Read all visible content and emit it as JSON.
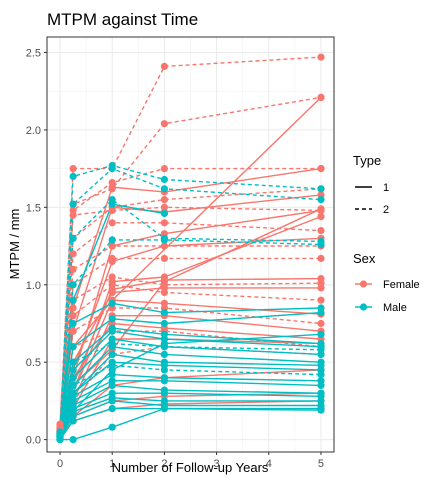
{
  "chart_data": {
    "type": "line",
    "title": "MTPM against Time",
    "xlabel": "Number of Follow-up Years",
    "ylabel": "MTPM / mm",
    "x_ticks": [
      0,
      1,
      2,
      3,
      4,
      5
    ],
    "y_ticks": [
      "0.0",
      "0.5",
      "1.0",
      "1.5",
      "2.0",
      "2.5"
    ],
    "xlim": [
      -0.25,
      5.25
    ],
    "ylim": [
      -0.08,
      2.6
    ],
    "grid": true,
    "legend": {
      "position": "right",
      "type_title": "Type",
      "type_entries": [
        {
          "label": "1",
          "linetype": "solid"
        },
        {
          "label": "2",
          "linetype": "dashed"
        }
      ],
      "sex_title": "Sex",
      "sex_entries": [
        {
          "label": "Female",
          "color": "#F8766D"
        },
        {
          "label": "Male",
          "color": "#00BFC4"
        }
      ]
    },
    "colors": {
      "Female": "#F8766D",
      "Male": "#00BFC4"
    },
    "series": [
      {
        "sex": "Female",
        "type": "2",
        "x": [
          0,
          0.25,
          1,
          2,
          5
        ],
        "y": [
          0.08,
          1.75,
          1.75,
          2.41,
          2.47
        ]
      },
      {
        "sex": "Female",
        "type": "2",
        "x": [
          0,
          0.25,
          1,
          2,
          5
        ],
        "y": [
          0.05,
          1.52,
          1.62,
          2.04,
          2.21
        ]
      },
      {
        "sex": "Female",
        "type": "1",
        "x": [
          0,
          0.25,
          1,
          5
        ],
        "y": [
          0.05,
          0.6,
          0.9,
          2.21
        ]
      },
      {
        "sex": "Female",
        "type": "2",
        "x": [
          0,
          0.25,
          1,
          2,
          5
        ],
        "y": [
          0.1,
          1.48,
          1.66,
          1.75,
          1.75
        ]
      },
      {
        "sex": "Female",
        "type": "1",
        "x": [
          0,
          0.25,
          1,
          2,
          5
        ],
        "y": [
          0.06,
          0.85,
          1.63,
          1.6,
          1.75
        ]
      },
      {
        "sex": "Female",
        "type": "2",
        "x": [
          0,
          0.25,
          1,
          2,
          5
        ],
        "y": [
          0.07,
          1.3,
          1.5,
          1.55,
          1.62
        ]
      },
      {
        "sex": "Female",
        "type": "1",
        "x": [
          0,
          0.25,
          1,
          2,
          5
        ],
        "y": [
          0.05,
          0.7,
          1.5,
          1.47,
          1.58
        ]
      },
      {
        "sex": "Female",
        "type": "2",
        "x": [
          0,
          0.25,
          1,
          2,
          5
        ],
        "y": [
          0.08,
          1.45,
          1.48,
          1.5,
          1.48
        ]
      },
      {
        "sex": "Female",
        "type": "1",
        "x": [
          0,
          0.25,
          1,
          2,
          5
        ],
        "y": [
          0.04,
          0.4,
          1.25,
          1.33,
          1.48
        ]
      },
      {
        "sex": "Female",
        "type": "2",
        "x": [
          0,
          0.25,
          1,
          2,
          5
        ],
        "y": [
          0.06,
          1.2,
          1.4,
          1.4,
          1.35
        ]
      },
      {
        "sex": "Female",
        "type": "1",
        "x": [
          0,
          0.25,
          1,
          2,
          5
        ],
        "y": [
          0.05,
          0.45,
          1.15,
          1.25,
          1.3
        ]
      },
      {
        "sex": "Female",
        "type": "2",
        "x": [
          0,
          0.25,
          1,
          2,
          5
        ],
        "y": [
          0.07,
          1.1,
          1.25,
          1.25,
          1.25
        ]
      },
      {
        "sex": "Female",
        "type": "2",
        "x": [
          0,
          0.25,
          1,
          2,
          5
        ],
        "y": [
          0.05,
          1.0,
          1.17,
          1.17,
          1.17
        ]
      },
      {
        "sex": "Female",
        "type": "1",
        "x": [
          0,
          0.25,
          1,
          2,
          5
        ],
        "y": [
          0.04,
          0.35,
          0.97,
          1.03,
          1.04
        ]
      },
      {
        "sex": "Female",
        "type": "2",
        "x": [
          0,
          0.25,
          1,
          2,
          5
        ],
        "y": [
          0.06,
          0.9,
          1.05,
          1.0,
          1.01
        ]
      },
      {
        "sex": "Female",
        "type": "1",
        "x": [
          0,
          0.25,
          1,
          2,
          5
        ],
        "y": [
          0.05,
          0.5,
          0.95,
          0.98,
          0.98
        ]
      },
      {
        "sex": "Female",
        "type": "2",
        "x": [
          0,
          0.25,
          1,
          2,
          5
        ],
        "y": [
          0.06,
          0.8,
          1.0,
          0.95,
          0.9
        ]
      },
      {
        "sex": "Female",
        "type": "1",
        "x": [
          0,
          0.25,
          1,
          2,
          5
        ],
        "y": [
          0.04,
          0.3,
          0.9,
          0.88,
          0.81
        ]
      },
      {
        "sex": "Female",
        "type": "2",
        "x": [
          0,
          0.25,
          1,
          2,
          5
        ],
        "y": [
          0.05,
          0.7,
          0.85,
          0.85,
          0.75
        ]
      },
      {
        "sex": "Female",
        "type": "1",
        "x": [
          0,
          0.25,
          1,
          2,
          5
        ],
        "y": [
          0.03,
          0.25,
          0.8,
          0.8,
          0.7
        ]
      },
      {
        "sex": "Female",
        "type": "1",
        "x": [
          0,
          0.25,
          1,
          2,
          5
        ],
        "y": [
          0.05,
          0.4,
          0.75,
          0.72,
          0.65
        ]
      },
      {
        "sex": "Female",
        "type": "2",
        "x": [
          0,
          0.25,
          1,
          2,
          5
        ],
        "y": [
          0.05,
          0.6,
          0.7,
          0.7,
          0.6
        ]
      },
      {
        "sex": "Female",
        "type": "1",
        "x": [
          0,
          0.25,
          1,
          2,
          5
        ],
        "y": [
          0.03,
          0.2,
          0.65,
          0.65,
          0.62
        ]
      },
      {
        "sex": "Female",
        "type": "1",
        "x": [
          0,
          0.25,
          1,
          2,
          5
        ],
        "y": [
          0.04,
          0.3,
          1.02,
          1.05,
          1.44
        ]
      },
      {
        "sex": "Female",
        "type": "1",
        "x": [
          0,
          0.25,
          1,
          2,
          5
        ],
        "y": [
          0.04,
          0.35,
          0.58,
          1.02,
          1.49
        ]
      },
      {
        "sex": "Female",
        "type": "2",
        "x": [
          0,
          0.25,
          1,
          2,
          5
        ],
        "y": [
          0.03,
          0.25,
          0.55,
          0.6,
          0.55
        ]
      },
      {
        "sex": "Female",
        "type": "1",
        "x": [
          0,
          0.25,
          1,
          2,
          5
        ],
        "y": [
          0.02,
          0.15,
          0.35,
          0.4,
          0.45
        ]
      },
      {
        "sex": "Female",
        "type": "1",
        "x": [
          0,
          0.25,
          1,
          2,
          5
        ],
        "y": [
          0.02,
          0.12,
          0.2,
          0.23,
          0.25
        ]
      },
      {
        "sex": "Female",
        "type": "1",
        "x": [
          0,
          0.25,
          1,
          2,
          5
        ],
        "y": [
          0.02,
          0.15,
          0.25,
          0.28,
          0.3
        ]
      },
      {
        "sex": "Male",
        "type": "2",
        "x": [
          0,
          0.25,
          1,
          2,
          5
        ],
        "y": [
          0.05,
          1.7,
          1.77,
          1.68,
          1.62
        ]
      },
      {
        "sex": "Male",
        "type": "2",
        "x": [
          0,
          0.25,
          1,
          2,
          5
        ],
        "y": [
          0.04,
          1.52,
          1.75,
          1.62,
          1.55
        ]
      },
      {
        "sex": "Male",
        "type": "1",
        "x": [
          0,
          0.25,
          1,
          2
        ],
        "y": [
          0.03,
          0.9,
          1.52,
          1.46
        ]
      },
      {
        "sex": "Male",
        "type": "2",
        "x": [
          0,
          0.25,
          1,
          2,
          5
        ],
        "y": [
          0.04,
          1.3,
          1.55,
          1.3,
          1.28
        ]
      },
      {
        "sex": "Male",
        "type": "2",
        "x": [
          0,
          0.25,
          1,
          2,
          5
        ],
        "y": [
          0.03,
          1.0,
          1.29,
          1.29,
          1.26
        ]
      },
      {
        "sex": "Male",
        "type": "1",
        "x": [
          0,
          0.25,
          1,
          2,
          5
        ],
        "y": [
          0.03,
          0.75,
          0.88,
          0.82,
          0.85
        ]
      },
      {
        "sex": "Male",
        "type": "1",
        "x": [
          0,
          0.25,
          1,
          2,
          5
        ],
        "y": [
          0.03,
          0.6,
          0.78,
          0.75,
          0.82
        ]
      },
      {
        "sex": "Male",
        "type": "1",
        "x": [
          0,
          0.25,
          1,
          2,
          5
        ],
        "y": [
          0.02,
          0.45,
          0.7,
          0.65,
          0.6
        ]
      },
      {
        "sex": "Male",
        "type": "1",
        "x": [
          0,
          0.25,
          1,
          2,
          5
        ],
        "y": [
          0.02,
          0.4,
          0.65,
          0.6,
          0.55
        ]
      },
      {
        "sex": "Male",
        "type": "2",
        "x": [
          0,
          0.25,
          1,
          2,
          5
        ],
        "y": [
          0.03,
          0.5,
          0.62,
          0.6,
          0.58
        ]
      },
      {
        "sex": "Male",
        "type": "1",
        "x": [
          0,
          0.25,
          1,
          2,
          5
        ],
        "y": [
          0.02,
          0.35,
          0.6,
          0.55,
          0.5
        ]
      },
      {
        "sex": "Male",
        "type": "1",
        "x": [
          0,
          0.25,
          1,
          2,
          5
        ],
        "y": [
          0.02,
          0.3,
          0.55,
          0.5,
          0.48
        ]
      },
      {
        "sex": "Male",
        "type": "1",
        "x": [
          0,
          0.25,
          1,
          2,
          5
        ],
        "y": [
          0.02,
          0.3,
          0.5,
          0.48,
          0.45
        ]
      },
      {
        "sex": "Male",
        "type": "2",
        "x": [
          0,
          0.25,
          1,
          2,
          5
        ],
        "y": [
          0.02,
          0.35,
          0.48,
          0.45,
          0.42
        ]
      },
      {
        "sex": "Male",
        "type": "1",
        "x": [
          0,
          0.25,
          1,
          2,
          5
        ],
        "y": [
          0.02,
          0.28,
          0.42,
          0.4,
          0.38
        ]
      },
      {
        "sex": "Male",
        "type": "1",
        "x": [
          0,
          0.25,
          1,
          2,
          5
        ],
        "y": [
          0.02,
          0.25,
          0.38,
          0.38,
          0.35
        ]
      },
      {
        "sex": "Male",
        "type": "1",
        "x": [
          0,
          0.25,
          1,
          2,
          5
        ],
        "y": [
          0.02,
          0.22,
          0.35,
          0.32,
          0.3
        ]
      },
      {
        "sex": "Male",
        "type": "1",
        "x": [
          0,
          0.25,
          1,
          2,
          5
        ],
        "y": [
          0.01,
          0.2,
          0.3,
          0.3,
          0.28
        ]
      },
      {
        "sex": "Male",
        "type": "1",
        "x": [
          0,
          0.25,
          1,
          2,
          5
        ],
        "y": [
          0.01,
          0.18,
          0.27,
          0.25,
          0.25
        ]
      },
      {
        "sex": "Male",
        "type": "1",
        "x": [
          0,
          0.25,
          1,
          2,
          5
        ],
        "y": [
          0.01,
          0.15,
          0.25,
          0.22,
          0.22
        ]
      },
      {
        "sex": "Male",
        "type": "1",
        "x": [
          0,
          0.25,
          1,
          2,
          5
        ],
        "y": [
          0.0,
          0.12,
          0.2,
          0.2,
          0.2
        ]
      },
      {
        "sex": "Male",
        "type": "1",
        "x": [
          0,
          0.25,
          1,
          2,
          5
        ],
        "y": [
          0.0,
          0.0,
          0.08,
          0.2,
          0.19
        ]
      },
      {
        "sex": "Male",
        "type": "1",
        "x": [
          0,
          0.25,
          1,
          2,
          5
        ],
        "y": [
          0.03,
          0.5,
          0.72,
          0.68,
          0.62
        ]
      },
      {
        "sex": "Male",
        "type": "1",
        "x": [
          0,
          0.25,
          1,
          2,
          5
        ],
        "y": [
          0.02,
          0.18,
          0.45,
          0.62,
          0.68
        ]
      }
    ]
  }
}
